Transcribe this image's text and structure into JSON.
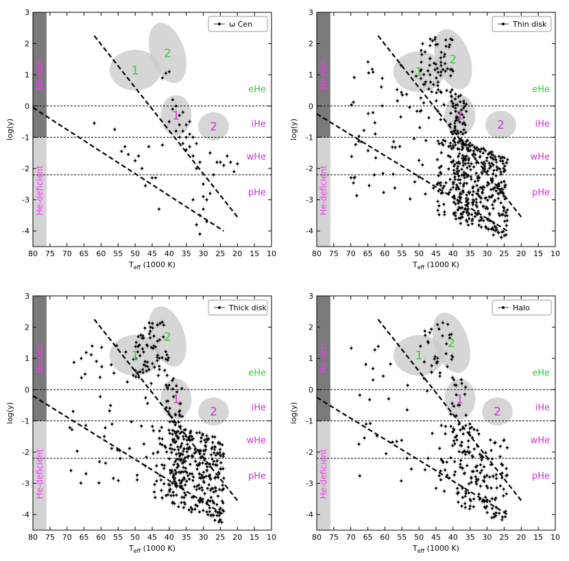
{
  "figure": {
    "xlabel_main": "T",
    "xlabel_sub": "eff",
    "xlabel_unit": " (1000 K)",
    "ylabel": "log(y)",
    "region_labels": {
      "he_rich": "He-rich",
      "he_deficient": "He-deficient",
      "eHe": "eHe",
      "iHe": "iHe",
      "wHe": "wHe",
      "pHe": "pHe"
    },
    "group_labels": {
      "one": "1",
      "two": "2"
    }
  },
  "chart_data": [
    {
      "type": "scatter",
      "legend": "ω Cen",
      "xlim": [
        80,
        10
      ],
      "ylim": [
        -4.5,
        3
      ],
      "xticks": [
        80,
        75,
        70,
        65,
        60,
        55,
        50,
        45,
        40,
        35,
        30,
        25,
        20,
        15,
        10
      ],
      "yticks": [
        -4,
        -3,
        -2,
        -1,
        0,
        1,
        2,
        3
      ],
      "hlines": [
        0,
        -1,
        -2.2
      ],
      "series": [
        {
          "points": [
            [
              62,
              -0.55
            ],
            [
              56,
              -0.75
            ],
            [
              54,
              -1.45
            ],
            [
              53,
              -1.3
            ],
            [
              52,
              -1.55
            ],
            [
              50,
              -1.75
            ],
            [
              49,
              -1.6
            ],
            [
              48,
              -2.0
            ],
            [
              47,
              -2.55
            ],
            [
              46,
              -1.3
            ],
            [
              45,
              -2.3
            ],
            [
              44,
              -2.3
            ],
            [
              43,
              -3.3
            ],
            [
              42,
              -1.25
            ],
            [
              42,
              0.9
            ],
            [
              41,
              1.05
            ],
            [
              40,
              1.1
            ],
            [
              40,
              -0.5
            ],
            [
              39,
              0.2
            ],
            [
              39,
              -0.1
            ],
            [
              38,
              0.0
            ],
            [
              38,
              -0.8
            ],
            [
              37,
              -0.3
            ],
            [
              37,
              -0.6
            ],
            [
              37,
              -1.0
            ],
            [
              36,
              -0.2
            ],
            [
              36,
              -0.8
            ],
            [
              36,
              -1.2
            ],
            [
              35,
              -0.6
            ],
            [
              35,
              -1.0
            ],
            [
              35,
              -1.4
            ],
            [
              34,
              -0.5
            ],
            [
              34,
              -0.9
            ],
            [
              34,
              -1.3
            ],
            [
              33,
              -1.0
            ],
            [
              33,
              -1.6
            ],
            [
              32,
              -1.2
            ],
            [
              32,
              -2.0
            ],
            [
              31,
              -1.8
            ],
            [
              31,
              -3.5
            ],
            [
              30,
              -3.3
            ],
            [
              30,
              -2.5
            ],
            [
              29,
              -3.0
            ],
            [
              29,
              -3.7
            ],
            [
              28,
              -2.8
            ],
            [
              28,
              -1.5
            ],
            [
              27,
              -2.2
            ],
            [
              26,
              -1.8
            ],
            [
              25,
              -1.8
            ],
            [
              24,
              -1.9
            ],
            [
              23,
              -1.6
            ],
            [
              22,
              -1.8
            ],
            [
              21,
              -2.1
            ],
            [
              20,
              -1.85
            ],
            [
              33,
              -3.0
            ],
            [
              32,
              -3.8
            ],
            [
              31,
              -4.1
            ],
            [
              30,
              -2.9
            ]
          ]
        }
      ],
      "diagonals": [
        [
          [
            62,
            2.25
          ],
          [
            20,
            -3.55
          ]
        ],
        [
          [
            80,
            -0.05
          ],
          [
            24,
            -4.0
          ]
        ]
      ],
      "groups": {
        "one": [
          50,
          1.15
        ],
        "two": [
          40.5,
          1.7
        ],
        "one_b": [
          38,
          -0.3
        ],
        "two_b": [
          27,
          -0.65
        ]
      }
    },
    {
      "type": "scatter",
      "legend": "Thin disk",
      "xlim": [
        80,
        10
      ],
      "ylim": [
        -4.5,
        3
      ],
      "xticks": [
        80,
        75,
        70,
        65,
        60,
        55,
        50,
        45,
        40,
        35,
        30,
        25,
        20,
        15,
        10
      ],
      "yticks": [
        -4,
        -3,
        -2,
        -1,
        0,
        1,
        2,
        3
      ],
      "hlines": [
        0,
        -1,
        -2.2
      ],
      "series": [
        {
          "n": 620,
          "region": "broad",
          "seed": 2
        }
      ],
      "diagonals": [
        [
          [
            62,
            2.25
          ],
          [
            20,
            -3.55
          ]
        ],
        [
          [
            80,
            -0.25
          ],
          [
            24,
            -4.0
          ]
        ]
      ],
      "groups": {
        "one": [
          50,
          1.1
        ],
        "two": [
          40,
          1.5
        ],
        "one_b": [
          38,
          -0.3
        ],
        "two_b": [
          26,
          -0.6
        ]
      }
    },
    {
      "type": "scatter",
      "legend": "Thick disk",
      "xlim": [
        80,
        10
      ],
      "ylim": [
        -4.5,
        3
      ],
      "xticks": [
        80,
        75,
        70,
        65,
        60,
        55,
        50,
        45,
        40,
        35,
        30,
        25,
        20,
        15,
        10
      ],
      "yticks": [
        -4,
        -3,
        -2,
        -1,
        0,
        1,
        2,
        3
      ],
      "hlines": [
        0,
        -1,
        -2.2
      ],
      "series": [
        {
          "n": 520,
          "region": "broad",
          "seed": 7
        }
      ],
      "diagonals": [
        [
          [
            62,
            2.25
          ],
          [
            20,
            -3.55
          ]
        ],
        [
          [
            80,
            -0.2
          ],
          [
            24,
            -4.0
          ]
        ]
      ],
      "groups": {
        "one": [
          50,
          1.1
        ],
        "two": [
          40.5,
          1.7
        ],
        "one_b": [
          38,
          -0.3
        ],
        "two_b": [
          27,
          -0.7
        ]
      }
    },
    {
      "type": "scatter",
      "legend": "Halo",
      "xlim": [
        80,
        10
      ],
      "ylim": [
        -4.5,
        3
      ],
      "xticks": [
        80,
        75,
        70,
        65,
        60,
        55,
        50,
        45,
        40,
        35,
        30,
        25,
        20,
        15,
        10
      ],
      "yticks": [
        -4,
        -3,
        -2,
        -1,
        0,
        1,
        2,
        3
      ],
      "hlines": [
        0,
        -1,
        -2.2
      ],
      "series": [
        {
          "n": 260,
          "region": "broad",
          "seed": 11
        }
      ],
      "diagonals": [
        [
          [
            62,
            2.25
          ],
          [
            20,
            -3.55
          ]
        ],
        [
          [
            80,
            -0.25
          ],
          [
            24,
            -4.0
          ]
        ]
      ],
      "groups": {
        "one": [
          50,
          1.1
        ],
        "two": [
          40.5,
          1.5
        ],
        "one_b": [
          38,
          -0.3
        ],
        "two_b": [
          27,
          -0.7
        ]
      }
    }
  ]
}
